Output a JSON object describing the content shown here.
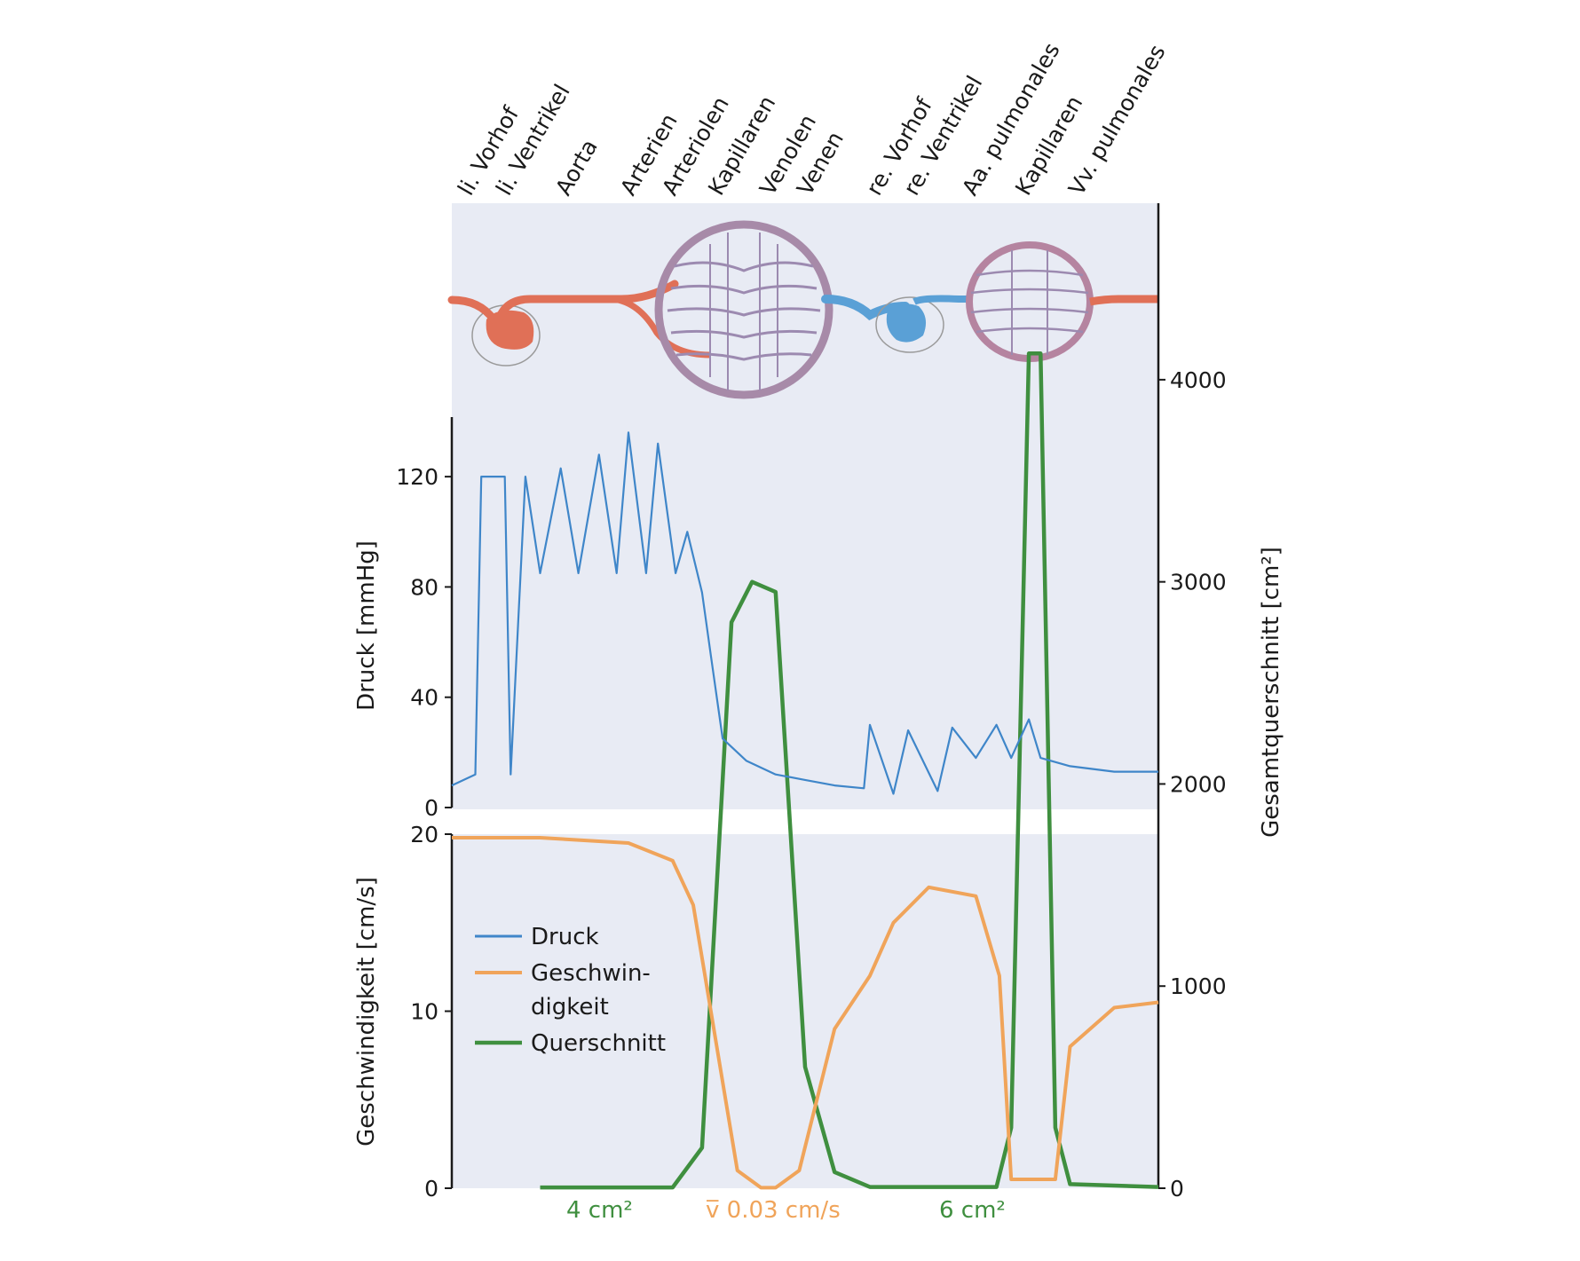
{
  "colors": {
    "background_panel": "#e8ebf4",
    "druck": "#3f86c9",
    "geschwindigkeit": "#f0a45a",
    "querschnitt": "#3f8f3f",
    "arterial": "#e07057",
    "venous": "#5aa0d6",
    "axis": "#1a1a1a"
  },
  "vessel_labels": [
    "li. Vorhof",
    "li. Ventrikel",
    "Aorta",
    "Arterien",
    "Arteriolen",
    "Kapillaren",
    "Venolen",
    "Venen",
    "re. Vorhof",
    "re. Ventrikel",
    "Aa. pulmonales",
    "Kapillaren",
    "Vv. pulmonales"
  ],
  "axes": {
    "druck": {
      "label": "Druck [mmHg]",
      "ticks": [
        "0",
        "40",
        "80",
        "120"
      ],
      "range": [
        0,
        140
      ]
    },
    "geschwindigkeit": {
      "label": "Geschwindigkeit [cm/s]",
      "ticks": [
        "0",
        "10",
        "20"
      ],
      "range": [
        0,
        20
      ]
    },
    "querschnitt": {
      "label": "Gesamtquerschnitt [cm²]",
      "ticks": [
        "0",
        "1000",
        "2000",
        "3000",
        "4000"
      ],
      "range": [
        0,
        4500
      ]
    }
  },
  "legend": {
    "druck": "Druck",
    "geschwindigkeit_line1": "Geschwin-",
    "geschwindigkeit_line2": "digkeit",
    "querschnitt": "Querschnitt"
  },
  "annotations": {
    "aorta_area": "4 cm²",
    "capillary_velocity": "v̅ 0.03 cm/s",
    "pulmonary_area": "6 cm²"
  },
  "chart_data": [
    {
      "type": "line",
      "name": "Druck",
      "ylabel": "Druck [mmHg]",
      "ylim": [
        0,
        140
      ],
      "x_positions": "vessel_labels",
      "series": [
        {
          "name": "Druck",
          "points": [
            [
              0.0,
              8
            ],
            [
              0.08,
              12
            ],
            [
              0.1,
              120
            ],
            [
              0.18,
              120
            ],
            [
              0.2,
              12
            ],
            [
              0.25,
              120
            ],
            [
              0.3,
              85
            ],
            [
              0.37,
              123
            ],
            [
              0.43,
              85
            ],
            [
              0.5,
              128
            ],
            [
              0.56,
              85
            ],
            [
              0.6,
              136
            ],
            [
              0.66,
              85
            ],
            [
              0.7,
              132
            ],
            [
              0.76,
              85
            ],
            [
              0.8,
              100
            ],
            [
              0.85,
              78
            ],
            [
              0.88,
              55
            ],
            [
              0.92,
              25
            ],
            [
              1.0,
              17
            ],
            [
              1.1,
              12
            ],
            [
              1.2,
              10
            ],
            [
              1.3,
              8
            ],
            [
              1.4,
              7
            ],
            [
              1.42,
              30
            ],
            [
              1.5,
              5
            ],
            [
              1.55,
              28
            ],
            [
              1.65,
              6
            ],
            [
              1.7,
              29
            ],
            [
              1.78,
              18
            ],
            [
              1.85,
              30
            ],
            [
              1.9,
              18
            ],
            [
              1.96,
              32
            ],
            [
              2.0,
              18
            ],
            [
              2.1,
              15
            ],
            [
              2.25,
              13
            ],
            [
              2.4,
              13
            ]
          ]
        }
      ]
    },
    {
      "type": "line",
      "name": "Geschwindigkeit",
      "ylabel": "Geschwindigkeit [cm/s]",
      "ylim": [
        0,
        20
      ],
      "series": [
        {
          "name": "Geschwindigkeit",
          "points": [
            [
              0.0,
              19.8
            ],
            [
              0.3,
              19.8
            ],
            [
              0.6,
              19.5
            ],
            [
              0.75,
              18.5
            ],
            [
              0.82,
              16
            ],
            [
              0.9,
              8
            ],
            [
              0.97,
              1
            ],
            [
              1.05,
              0.03
            ],
            [
              1.1,
              0.03
            ],
            [
              1.18,
              1
            ],
            [
              1.3,
              9
            ],
            [
              1.42,
              12
            ],
            [
              1.5,
              15
            ],
            [
              1.62,
              17
            ],
            [
              1.78,
              16.5
            ],
            [
              1.86,
              12
            ],
            [
              1.9,
              0.5
            ],
            [
              2.05,
              0.5
            ],
            [
              2.1,
              8
            ],
            [
              2.25,
              10.2
            ],
            [
              2.4,
              10.5
            ]
          ]
        }
      ]
    },
    {
      "type": "line",
      "name": "Querschnitt",
      "ylabel": "Gesamtquerschnitt [cm²]",
      "ylim": [
        0,
        4500
      ],
      "series": [
        {
          "name": "Querschnitt",
          "points": [
            [
              0.3,
              4
            ],
            [
              0.75,
              4
            ],
            [
              0.85,
              200
            ],
            [
              0.95,
              2800
            ],
            [
              1.02,
              3000
            ],
            [
              1.1,
              2950
            ],
            [
              1.2,
              600
            ],
            [
              1.3,
              80
            ],
            [
              1.42,
              6
            ],
            [
              1.85,
              6
            ],
            [
              1.9,
              300
            ],
            [
              1.96,
              4130
            ],
            [
              2.0,
              4130
            ],
            [
              2.05,
              300
            ],
            [
              2.1,
              20
            ],
            [
              2.4,
              6
            ]
          ]
        }
      ]
    }
  ]
}
